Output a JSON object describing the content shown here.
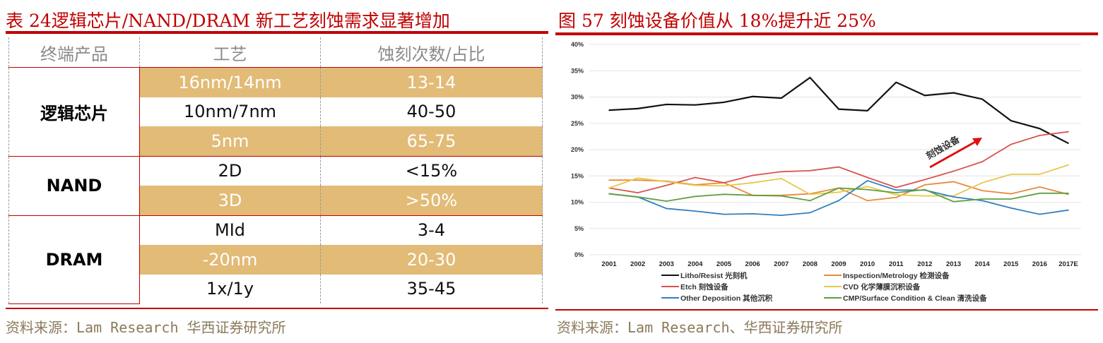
{
  "left": {
    "title": "表 24逻辑芯片/NAND/DRAM 新工艺刻蚀需求显著增加",
    "headers": [
      "终端产品",
      "工艺",
      "蚀刻次数/占比"
    ],
    "groups": [
      {
        "name": "逻辑芯片",
        "rows": [
          [
            "16nm/14nm",
            "13-14"
          ],
          [
            "10nm/7nm",
            "40-50"
          ],
          [
            "5nm",
            "65-75"
          ]
        ]
      },
      {
        "name": "NAND",
        "rows": [
          [
            "2D",
            "<15%"
          ],
          [
            "3D",
            ">50%"
          ]
        ]
      },
      {
        "name": "DRAM",
        "rows": [
          [
            "MId",
            "3-4"
          ],
          [
            "-20nm",
            "20-30"
          ],
          [
            "1x/1y",
            "35-45"
          ]
        ]
      }
    ],
    "source": "资料来源：Lam Research 华西证券研究所",
    "shade_color": "#e2bb77"
  },
  "right": {
    "title": "图 57  刻蚀设备价值从 18%提升近 25%",
    "source": "资料来源：Lam Research、华西证券研究所"
  },
  "chart_data": {
    "type": "line",
    "title": "",
    "x": [
      "2001",
      "2002",
      "2003",
      "2004",
      "2005",
      "2006",
      "2007",
      "2008",
      "2009",
      "2010",
      "2011",
      "2012",
      "2013",
      "2014",
      "2015",
      "2016",
      "2017E"
    ],
    "ylim": [
      0,
      40
    ],
    "yticks": [
      "0%",
      "5%",
      "10%",
      "15%",
      "20%",
      "25%",
      "30%",
      "35%",
      "40%"
    ],
    "grid": true,
    "legend_position": "bottom",
    "annotation": "刻蚀设备",
    "series": [
      {
        "name": "Litho/Resist 光刻机",
        "color": "#111111",
        "values": [
          27.5,
          27.8,
          28.6,
          28.5,
          29.0,
          30.1,
          29.8,
          33.7,
          27.7,
          27.4,
          32.8,
          30.3,
          30.8,
          29.6,
          25.5,
          24.0,
          21.2
        ]
      },
      {
        "name": "Inspection/Metrology 检测设备",
        "color": "#e8893a",
        "values": [
          14.2,
          14.2,
          14.0,
          13.3,
          13.7,
          11.3,
          11.3,
          11.6,
          12.7,
          10.3,
          10.9,
          13.3,
          13.9,
          12.2,
          11.6,
          12.9,
          11.5
        ]
      },
      {
        "name": "Etch 刻蚀设备",
        "color": "#d9534f",
        "values": [
          12.7,
          11.8,
          13.2,
          14.7,
          13.7,
          15.1,
          15.8,
          16.0,
          16.7,
          14.7,
          12.8,
          14.3,
          15.9,
          17.7,
          21.0,
          22.7,
          23.4
        ]
      },
      {
        "name": "CVD 化学薄膜沉积设备",
        "color": "#e8c84a",
        "values": [
          12.7,
          14.6,
          13.9,
          13.2,
          13.1,
          13.7,
          14.5,
          11.5,
          11.9,
          13.0,
          11.4,
          11.2,
          11.2,
          13.7,
          15.3,
          15.3,
          17.1
        ]
      },
      {
        "name": "Other Deposition 其他沉积",
        "color": "#2f7fc1",
        "values": [
          11.6,
          11.0,
          8.8,
          8.3,
          7.7,
          7.8,
          7.5,
          8.0,
          10.3,
          14.1,
          12.3,
          12.3,
          11.0,
          10.3,
          8.9,
          7.7,
          8.5
        ]
      },
      {
        "name": "CMP/Surface Condition & Clean 清洗设备",
        "color": "#5fa040",
        "values": [
          11.6,
          11.0,
          10.2,
          11.1,
          11.5,
          11.3,
          11.2,
          10.3,
          12.7,
          12.4,
          11.8,
          12.4,
          10.1,
          10.6,
          10.6,
          11.7,
          11.7
        ]
      }
    ]
  }
}
